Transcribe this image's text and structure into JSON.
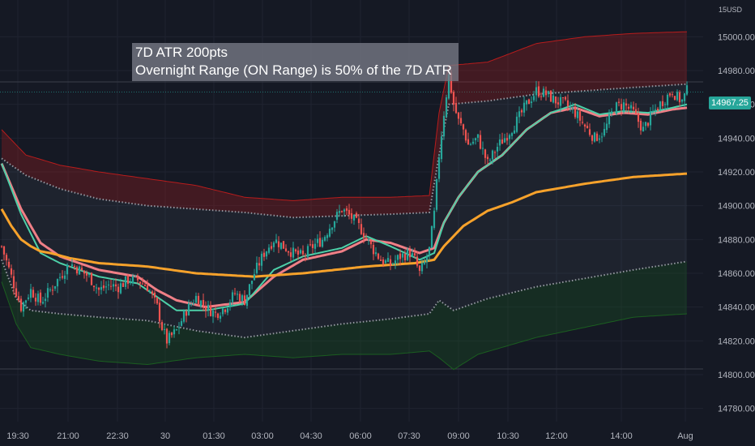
{
  "annotation": {
    "line1": "7D ATR 200pts",
    "line2": "Overnight Range (ON Range) is 50% of the 7D ATR"
  },
  "currency": "USD",
  "currency_prefix": "15",
  "last_price_label": "14967.25",
  "colors": {
    "background": "#151924",
    "up_candle": "#26a69a",
    "down_candle": "#ef5350",
    "vwap": "#f7a22b",
    "fast_ma": "#4dd0a8",
    "slow_ma": "#ef7f86",
    "upper_band": "#b71c1c",
    "lower_band": "#1b5e20",
    "dotted": "#9598a1"
  },
  "chart_data": {
    "type": "candlestick",
    "x_ticks": [
      "19:30",
      "21:00",
      "22:30",
      "30",
      "01:30",
      "03:00",
      "04:30",
      "06:00",
      "07:30",
      "09:00",
      "10:30",
      "12:00",
      "14:00",
      "Aug"
    ],
    "y_ticks": [
      14780,
      14800,
      14820,
      14840,
      14860,
      14880,
      14900,
      14920,
      14940,
      14960,
      14980,
      15000
    ],
    "ylim": [
      14776,
      15018
    ],
    "last_price": 14967.25,
    "close_points": [
      [
        0,
        14876
      ],
      [
        4,
        14858
      ],
      [
        8,
        14840
      ],
      [
        12,
        14850
      ],
      [
        16,
        14843
      ],
      [
        20,
        14850
      ],
      [
        24,
        14858
      ],
      [
        28,
        14866
      ],
      [
        32,
        14862
      ],
      [
        36,
        14858
      ],
      [
        40,
        14850
      ],
      [
        44,
        14853
      ],
      [
        48,
        14852
      ],
      [
        52,
        14856
      ],
      [
        56,
        14856
      ],
      [
        60,
        14852
      ],
      [
        64,
        14840
      ],
      [
        66,
        14828
      ],
      [
        68,
        14820
      ],
      [
        72,
        14826
      ],
      [
        76,
        14838
      ],
      [
        80,
        14846
      ],
      [
        84,
        14840
      ],
      [
        88,
        14836
      ],
      [
        92,
        14840
      ],
      [
        96,
        14848
      ],
      [
        100,
        14844
      ],
      [
        104,
        14860
      ],
      [
        108,
        14872
      ],
      [
        112,
        14880
      ],
      [
        116,
        14876
      ],
      [
        120,
        14872
      ],
      [
        124,
        14870
      ],
      [
        128,
        14876
      ],
      [
        132,
        14880
      ],
      [
        136,
        14890
      ],
      [
        140,
        14898
      ],
      [
        144,
        14893
      ],
      [
        148,
        14886
      ],
      [
        152,
        14876
      ],
      [
        156,
        14868
      ],
      [
        160,
        14865
      ],
      [
        164,
        14870
      ],
      [
        168,
        14872
      ],
      [
        170,
        14868
      ],
      [
        172,
        14860
      ],
      [
        174,
        14866
      ],
      [
        176,
        14874
      ],
      [
        178,
        14895
      ],
      [
        180,
        14930
      ],
      [
        182,
        14955
      ],
      [
        184,
        14977
      ],
      [
        186,
        14960
      ],
      [
        188,
        14950
      ],
      [
        190,
        14945
      ],
      [
        192,
        14936
      ],
      [
        196,
        14940
      ],
      [
        200,
        14925
      ],
      [
        204,
        14935
      ],
      [
        208,
        14942
      ],
      [
        212,
        14950
      ],
      [
        216,
        14960
      ],
      [
        220,
        14968
      ],
      [
        224,
        14966
      ],
      [
        228,
        14962
      ],
      [
        232,
        14960
      ],
      [
        236,
        14955
      ],
      [
        240,
        14947
      ],
      [
        244,
        14940
      ],
      [
        248,
        14944
      ],
      [
        252,
        14958
      ],
      [
        256,
        14960
      ],
      [
        260,
        14955
      ],
      [
        264,
        14945
      ],
      [
        268,
        14955
      ],
      [
        272,
        14962
      ],
      [
        276,
        14968
      ],
      [
        278,
        14964
      ],
      [
        280,
        14962
      ],
      [
        282,
        14968
      ]
    ],
    "vwap": [
      [
        0,
        14898
      ],
      [
        4,
        14888
      ],
      [
        8,
        14880
      ],
      [
        12,
        14876
      ],
      [
        16,
        14873
      ],
      [
        20,
        14872
      ],
      [
        28,
        14869
      ],
      [
        40,
        14866
      ],
      [
        60,
        14864
      ],
      [
        80,
        14860
      ],
      [
        104,
        14858
      ],
      [
        124,
        14860
      ],
      [
        150,
        14864
      ],
      [
        170,
        14866
      ],
      [
        178,
        14868
      ],
      [
        182,
        14876
      ],
      [
        190,
        14888
      ],
      [
        200,
        14897
      ],
      [
        210,
        14902
      ],
      [
        220,
        14908
      ],
      [
        240,
        14913
      ],
      [
        260,
        14917
      ],
      [
        282,
        14919
      ]
    ],
    "fast_ma": [
      [
        0,
        14925
      ],
      [
        8,
        14895
      ],
      [
        16,
        14872
      ],
      [
        24,
        14866
      ],
      [
        40,
        14858
      ],
      [
        56,
        14854
      ],
      [
        64,
        14846
      ],
      [
        72,
        14838
      ],
      [
        84,
        14838
      ],
      [
        100,
        14842
      ],
      [
        112,
        14862
      ],
      [
        124,
        14870
      ],
      [
        140,
        14875
      ],
      [
        150,
        14882
      ],
      [
        160,
        14876
      ],
      [
        172,
        14868
      ],
      [
        178,
        14872
      ],
      [
        182,
        14890
      ],
      [
        188,
        14905
      ],
      [
        196,
        14920
      ],
      [
        206,
        14930
      ],
      [
        216,
        14945
      ],
      [
        226,
        14955
      ],
      [
        236,
        14960
      ],
      [
        246,
        14954
      ],
      [
        256,
        14956
      ],
      [
        266,
        14955
      ],
      [
        276,
        14958
      ],
      [
        282,
        14960
      ]
    ],
    "slow_ma": [
      [
        0,
        14925
      ],
      [
        8,
        14898
      ],
      [
        16,
        14878
      ],
      [
        24,
        14870
      ],
      [
        40,
        14862
      ],
      [
        56,
        14858
      ],
      [
        64,
        14850
      ],
      [
        72,
        14844
      ],
      [
        84,
        14840
      ],
      [
        100,
        14843
      ],
      [
        112,
        14858
      ],
      [
        124,
        14868
      ],
      [
        140,
        14873
      ],
      [
        150,
        14880
      ],
      [
        160,
        14878
      ],
      [
        172,
        14872
      ],
      [
        178,
        14875
      ],
      [
        182,
        14890
      ],
      [
        188,
        14905
      ],
      [
        196,
        14920
      ],
      [
        206,
        14930
      ],
      [
        216,
        14945
      ],
      [
        226,
        14955
      ],
      [
        236,
        14958
      ],
      [
        246,
        14953
      ],
      [
        256,
        14955
      ],
      [
        266,
        14954
      ],
      [
        276,
        14957
      ],
      [
        282,
        14958
      ]
    ],
    "upper_band": [
      [
        0,
        14945
      ],
      [
        10,
        14930
      ],
      [
        24,
        14924
      ],
      [
        40,
        14920
      ],
      [
        60,
        14916
      ],
      [
        80,
        14912
      ],
      [
        100,
        14905
      ],
      [
        120,
        14903
      ],
      [
        140,
        14905
      ],
      [
        160,
        14905
      ],
      [
        176,
        14906
      ],
      [
        180,
        14955
      ],
      [
        184,
        14983
      ],
      [
        200,
        14985
      ],
      [
        220,
        14996
      ],
      [
        240,
        15000
      ],
      [
        260,
        15002
      ],
      [
        282,
        15003
      ]
    ],
    "upper_dotted": [
      [
        0,
        14928
      ],
      [
        10,
        14918
      ],
      [
        24,
        14910
      ],
      [
        40,
        14904
      ],
      [
        60,
        14900
      ],
      [
        80,
        14898
      ],
      [
        100,
        14896
      ],
      [
        120,
        14893
      ],
      [
        140,
        14894
      ],
      [
        160,
        14895
      ],
      [
        176,
        14896
      ],
      [
        180,
        14930
      ],
      [
        184,
        14960
      ],
      [
        200,
        14962
      ],
      [
        220,
        14966
      ],
      [
        240,
        14968
      ],
      [
        260,
        14970
      ],
      [
        282,
        14972
      ]
    ],
    "lower_dotted": [
      [
        0,
        14868
      ],
      [
        6,
        14845
      ],
      [
        12,
        14838
      ],
      [
        24,
        14836
      ],
      [
        40,
        14834
      ],
      [
        60,
        14832
      ],
      [
        80,
        14826
      ],
      [
        100,
        14822
      ],
      [
        120,
        14826
      ],
      [
        140,
        14830
      ],
      [
        160,
        14833
      ],
      [
        176,
        14836
      ],
      [
        180,
        14844
      ],
      [
        186,
        14838
      ],
      [
        200,
        14845
      ],
      [
        220,
        14852
      ],
      [
        240,
        14857
      ],
      [
        260,
        14862
      ],
      [
        282,
        14867
      ]
    ],
    "lower_band": [
      [
        0,
        14855
      ],
      [
        6,
        14830
      ],
      [
        12,
        14816
      ],
      [
        24,
        14812
      ],
      [
        40,
        14808
      ],
      [
        60,
        14806
      ],
      [
        80,
        14810
      ],
      [
        100,
        14812
      ],
      [
        120,
        14810
      ],
      [
        140,
        14812
      ],
      [
        160,
        14812
      ],
      [
        176,
        14814
      ],
      [
        180,
        14810
      ],
      [
        186,
        14803
      ],
      [
        196,
        14812
      ],
      [
        220,
        14822
      ],
      [
        240,
        14828
      ],
      [
        260,
        14834
      ],
      [
        282,
        14836
      ]
    ]
  }
}
